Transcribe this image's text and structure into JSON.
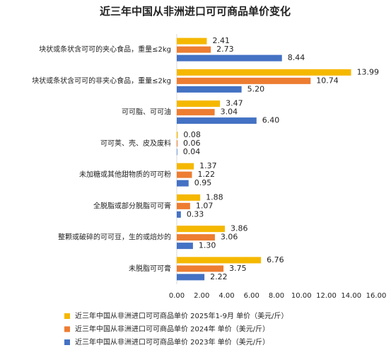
{
  "chart_data": {
    "type": "bar",
    "orientation": "horizontal",
    "title": "近三年中国从非洲进口可可商品单价变化",
    "categories": [
      "块状或条状含可可的夹心食品，重量≤2kg",
      "块状或条状含可可的非夹心食品，重量≤2kg",
      "可可脂、可可油",
      "可可荚、壳、皮及废料",
      "未加糖或其他甜物质的可可粉",
      "全脱脂或部分脱脂可可膏",
      "整颗或破碎的可可豆，生的或焙炒的",
      "未脱脂可可膏"
    ],
    "series": [
      {
        "name": "近三年中国从非洲进口可可商品单价 2025年1-9月 单价（美元/斤）",
        "color": "#f5b800",
        "values": [
          2.41,
          13.99,
          3.47,
          0.08,
          1.37,
          1.88,
          3.86,
          6.76
        ],
        "value_labels": [
          "2.41",
          "13.99",
          "3.47",
          "0.08",
          "1.37",
          "1.88",
          "3.86",
          "6.76"
        ]
      },
      {
        "name": "近三年中国从非洲进口可可商品单价 2024年 单价（美元/斤）",
        "color": "#ed7d31",
        "values": [
          2.73,
          10.74,
          3.04,
          0.06,
          1.22,
          1.07,
          3.06,
          3.75
        ],
        "value_labels": [
          "2.73",
          "10.74",
          "3.04",
          "0.06",
          "1.22",
          "1.07",
          "3.06",
          "3.75"
        ]
      },
      {
        "name": "近三年中国从非洲进口可可商品单价 2023年 单价（美元/斤）",
        "color": "#4472c4",
        "values": [
          8.44,
          5.2,
          6.4,
          0.04,
          0.95,
          0.33,
          1.3,
          2.22
        ],
        "value_labels": [
          "8.44",
          "5.20",
          "6.40",
          "0.04",
          "0.95",
          "0.33",
          "1.30",
          "2.22"
        ]
      }
    ],
    "xlim": [
      0,
      16
    ],
    "xticks": [
      {
        "value": 0,
        "label": "0.00"
      },
      {
        "value": 2,
        "label": "2.00"
      },
      {
        "value": 4,
        "label": "4.00"
      },
      {
        "value": 6,
        "label": "6.00"
      },
      {
        "value": 8,
        "label": "8.00"
      },
      {
        "value": 10,
        "label": "10.00"
      },
      {
        "value": 12,
        "label": "12.00"
      },
      {
        "value": 14,
        "label": "14.00"
      },
      {
        "value": 16,
        "label": "16.00"
      }
    ],
    "grid": false
  }
}
